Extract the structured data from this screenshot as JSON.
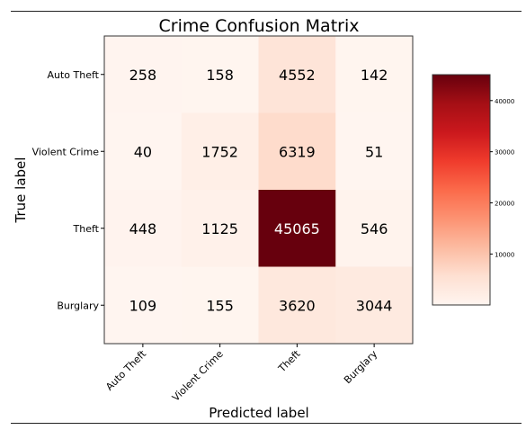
{
  "chart_data": {
    "type": "heatmap",
    "title": "Crime Confusion Matrix",
    "xlabel": "Predicted label",
    "ylabel": "True label",
    "x_categories": [
      "Auto Theft",
      "Violent Crime",
      "Theft",
      "Burglary"
    ],
    "y_categories": [
      "Auto Theft",
      "Violent Crime",
      "Theft",
      "Burglary"
    ],
    "values": [
      [
        258,
        158,
        4552,
        142
      ],
      [
        40,
        1752,
        6319,
        51
      ],
      [
        448,
        1125,
        45065,
        546
      ],
      [
        109,
        155,
        3620,
        3044
      ]
    ],
    "colormap": "Reds",
    "color_min": 40,
    "color_max": 45065,
    "colorbar_ticks": [
      10000,
      20000,
      30000,
      40000
    ],
    "colorbar_labels": [
      "10000",
      "20000",
      "30000",
      "40000"
    ]
  }
}
